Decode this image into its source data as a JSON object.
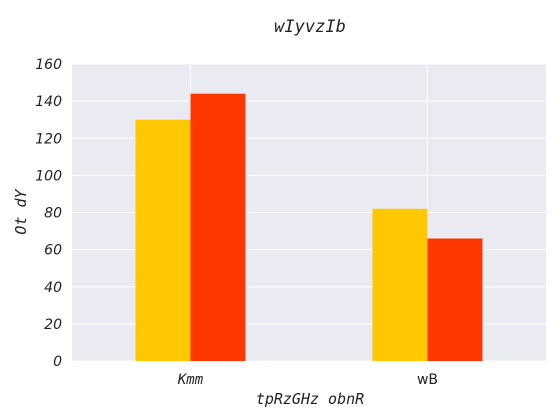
{
  "chart_data": {
    "type": "bar",
    "title": "wIyvzIb",
    "xlabel": "tpRzGHz obnR",
    "ylabel": "Ot dY",
    "categories": [
      "Kmm",
      "wB"
    ],
    "series": [
      {
        "values": [
          130,
          82
        ],
        "color": "#ffc800"
      },
      {
        "values": [
          144,
          66
        ],
        "color": "#ff3700"
      }
    ],
    "ylim": [
      0,
      160
    ],
    "yticks": [
      0,
      20,
      40,
      60,
      80,
      100,
      120,
      140,
      160
    ],
    "grid": true,
    "legend": "none",
    "background": "#eaeaf2",
    "grid_color": "#ffffff"
  }
}
